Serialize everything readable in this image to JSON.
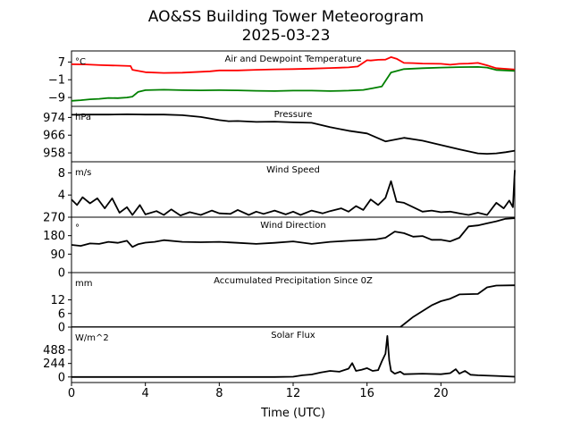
{
  "figure": {
    "title_line1": "AO&SS Building Tower Meteorogram",
    "title_line2": "2025-03-23",
    "xlabel": "Time (UTC)",
    "x_ticks": [
      0,
      4,
      8,
      12,
      16,
      20
    ],
    "x_tick_labels": [
      "0",
      "4",
      "8",
      "12",
      "16",
      "20"
    ],
    "xlim": [
      0,
      24
    ]
  },
  "chart_data": [
    {
      "type": "line",
      "title": "Air and Dewpoint Temperature",
      "unit": "°C",
      "ylim": [
        -13,
        12
      ],
      "y_ticks": [
        7,
        -1,
        -9
      ],
      "y_tick_labels": [
        "7",
        "−1",
        "−9"
      ],
      "series": [
        {
          "color": "#ff0000",
          "x": [
            0,
            0.8,
            1.6,
            2.5,
            3.2,
            3.3,
            4,
            5,
            6,
            7,
            7.5,
            8,
            9,
            10,
            11,
            12,
            13,
            14,
            15,
            15.5,
            16,
            16.2,
            16.6,
            17,
            17.3,
            17.6,
            18,
            18.5,
            19,
            20,
            20.5,
            21,
            21.5,
            22,
            22.5,
            23,
            24
          ],
          "y": [
            6,
            5.9,
            5.6,
            5.4,
            5.2,
            3.5,
            2.4,
            2.1,
            2.2,
            2.6,
            2.8,
            3.2,
            3.2,
            3.5,
            3.7,
            3.8,
            4,
            4.3,
            4.6,
            5,
            7.8,
            7.7,
            8,
            8.1,
            9.2,
            8.5,
            6.6,
            6.5,
            6.3,
            6.2,
            5.8,
            6.2,
            6.3,
            6.6,
            5.5,
            4.2,
            3.6
          ]
        },
        {
          "color": "#008000",
          "x": [
            0,
            0.5,
            1,
            1.5,
            2,
            2.5,
            3,
            3.3,
            3.6,
            4,
            5,
            6,
            7,
            8,
            9,
            10,
            11,
            12,
            13,
            14,
            15,
            15.8,
            16.3,
            16.8,
            17.3,
            18,
            19,
            20,
            21,
            22,
            22.5,
            23,
            24
          ],
          "y": [
            -10.5,
            -10.2,
            -9.8,
            -9.6,
            -9.2,
            -9.3,
            -9,
            -8.6,
            -6.5,
            -5.7,
            -5.5,
            -5.7,
            -5.8,
            -5.7,
            -5.8,
            -6,
            -6.1,
            -5.9,
            -5.9,
            -6.1,
            -5.9,
            -5.6,
            -4.8,
            -4,
            2.3,
            3.8,
            4.2,
            4.5,
            4.7,
            4.8,
            4.5,
            3.4,
            3
          ]
        }
      ]
    },
    {
      "type": "line",
      "title": "Pressure",
      "unit": "hPa",
      "ylim": [
        954,
        979
      ],
      "y_ticks": [
        974,
        966,
        958
      ],
      "y_tick_labels": [
        "974",
        "966",
        "958"
      ],
      "series": [
        {
          "color": "#000000",
          "x": [
            0,
            1,
            2,
            3,
            4,
            5,
            6,
            7,
            8,
            8.5,
            9,
            10,
            11,
            12,
            13,
            14,
            15,
            16,
            17,
            18,
            19,
            20,
            21,
            22,
            22.5,
            23,
            23.5,
            24
          ],
          "y": [
            975.2,
            975.3,
            975.3,
            975.4,
            975.3,
            975.3,
            975,
            974.2,
            972.8,
            972.3,
            972.4,
            972,
            972.1,
            971.8,
            971.6,
            969.6,
            968,
            966.8,
            963.2,
            964.8,
            963.5,
            961.6,
            959.6,
            957.8,
            957.6,
            957.8,
            958.3,
            959
          ]
        }
      ]
    },
    {
      "type": "line",
      "title": "Wind Speed",
      "unit": "m/s",
      "ylim": [
        0,
        10
      ],
      "y_ticks": [
        0,
        4,
        8
      ],
      "y_tick_labels": [
        "0",
        "4",
        "8"
      ],
      "series": [
        {
          "color": "#000000",
          "x": [
            0,
            0.3,
            0.6,
            1,
            1.4,
            1.8,
            2.2,
            2.6,
            3,
            3.3,
            3.7,
            4,
            4.6,
            5,
            5.4,
            5.9,
            6.4,
            7,
            7.6,
            8,
            8.6,
            9,
            9.6,
            10,
            10.4,
            11,
            11.6,
            12,
            12.4,
            13,
            13.6,
            14,
            14.6,
            15,
            15.4,
            15.8,
            16.2,
            16.6,
            17,
            17.3,
            17.6,
            18,
            18.5,
            19,
            19.5,
            20,
            20.5,
            21,
            21.5,
            22,
            22.5,
            23,
            23.4,
            23.7,
            23.9,
            24
          ],
          "y": [
            3.2,
            2.2,
            3.6,
            2.5,
            3.4,
            1.6,
            3.4,
            0.8,
            1.8,
            0.4,
            2.2,
            0.5,
            1.1,
            0.4,
            1.4,
            0.3,
            0.9,
            0.4,
            1.2,
            0.7,
            0.6,
            1.3,
            0.4,
            1,
            0.6,
            1.2,
            0.5,
            1,
            0.4,
            1.2,
            0.7,
            1.1,
            1.6,
            1,
            2,
            1.3,
            3.2,
            2.2,
            3.5,
            6.5,
            2.8,
            2.6,
            1.8,
            1,
            1.2,
            0.9,
            1,
            0.7,
            0.4,
            0.8,
            0.4,
            2.6,
            1.6,
            3,
            1.8,
            8.5
          ]
        }
      ]
    },
    {
      "type": "line",
      "title": "Wind Direction",
      "unit": "°",
      "ylim": [
        0,
        270
      ],
      "y_ticks": [
        0,
        90,
        180,
        270
      ],
      "y_tick_labels": [
        "0",
        "90",
        "180",
        "270"
      ],
      "series": [
        {
          "color": "#000000",
          "x": [
            0,
            0.5,
            1,
            1.5,
            2,
            2.5,
            3,
            3.3,
            3.6,
            4,
            4.5,
            5,
            6,
            7,
            8,
            9,
            10,
            11,
            12,
            13,
            14,
            15,
            16,
            16.5,
            17,
            17.5,
            18,
            18.5,
            19,
            19.5,
            20,
            20.5,
            21,
            21.5,
            22,
            22.5,
            23,
            23.5,
            24
          ],
          "y": [
            135,
            130,
            142,
            140,
            150,
            145,
            155,
            125,
            138,
            146,
            150,
            158,
            150,
            148,
            150,
            145,
            140,
            145,
            152,
            140,
            150,
            155,
            160,
            162,
            170,
            200,
            192,
            175,
            178,
            160,
            160,
            152,
            170,
            225,
            230,
            240,
            250,
            262,
            265
          ]
        }
      ]
    },
    {
      "type": "line",
      "title": "Accumulated Precipitation Since 0Z",
      "unit": "mm",
      "ylim": [
        0,
        24
      ],
      "y_ticks": [
        0,
        6,
        12
      ],
      "y_tick_labels": [
        "0",
        "6",
        "12"
      ],
      "series": [
        {
          "color": "#000000",
          "x": [
            0,
            17,
            17.8,
            18.5,
            19.5,
            20,
            20.5,
            21,
            21.5,
            22,
            22.5,
            23,
            24
          ],
          "y": [
            0,
            0,
            0,
            4.5,
            9.6,
            11.4,
            12.5,
            14.4,
            14.5,
            14.6,
            17.5,
            18.3,
            18.4
          ]
        }
      ]
    },
    {
      "type": "line",
      "title": "Solar Flux",
      "unit": "W/m^2",
      "ylim": [
        -100,
        900
      ],
      "y_ticks": [
        0,
        244,
        488
      ],
      "y_tick_labels": [
        "0",
        "244",
        "488"
      ],
      "series": [
        {
          "color": "#000000",
          "x": [
            0,
            11,
            12,
            12.5,
            13,
            13.5,
            14,
            14.5,
            15,
            15.2,
            15.4,
            15.7,
            16,
            16.3,
            16.6,
            16.8,
            17,
            17.1,
            17.2,
            17.3,
            17.5,
            17.8,
            18,
            19,
            20,
            20.5,
            20.8,
            21,
            21.3,
            21.6,
            22,
            23,
            24
          ],
          "y": [
            0,
            0,
            5,
            30,
            45,
            80,
            110,
            95,
            150,
            250,
            110,
            130,
            160,
            110,
            125,
            280,
            420,
            740,
            300,
            110,
            60,
            95,
            50,
            60,
            50,
            70,
            140,
            60,
            110,
            40,
            30,
            20,
            5
          ]
        }
      ]
    }
  ]
}
